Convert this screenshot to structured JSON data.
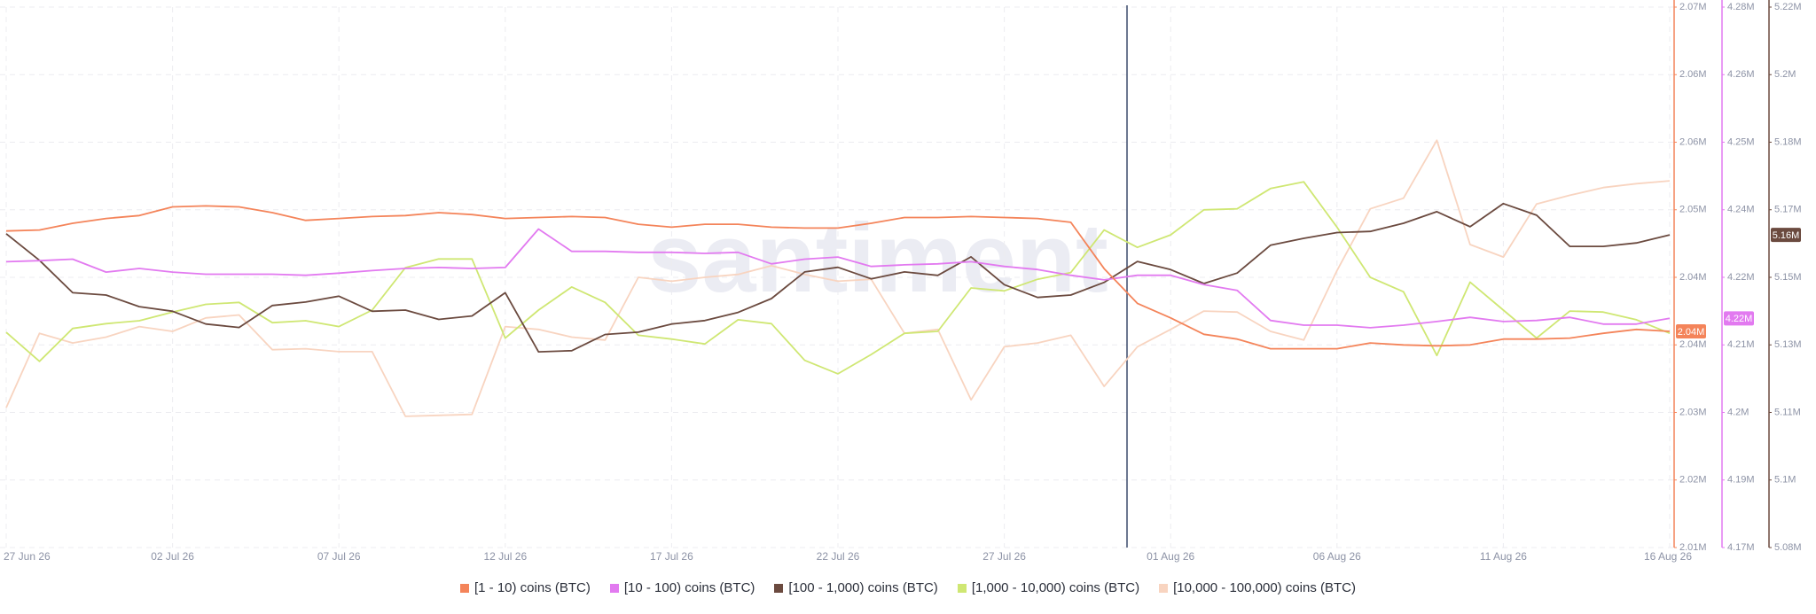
{
  "chart_data": {
    "type": "line",
    "watermark": "santiment",
    "grid": true,
    "categories": [
      "27 Jun 26",
      null,
      null,
      null,
      null,
      "02 Jul 26",
      null,
      null,
      null,
      null,
      "07 Jul 26",
      null,
      null,
      null,
      null,
      "12 Jul 26",
      null,
      null,
      null,
      null,
      "17 Jul 26",
      null,
      null,
      null,
      null,
      "22 Jul 26",
      null,
      null,
      null,
      null,
      "27 Jul 26",
      null,
      null,
      null,
      null,
      "01 Aug 26",
      null,
      null,
      null,
      null,
      "06 Aug 26",
      null,
      null,
      null,
      null,
      "11 Aug 26",
      null,
      null,
      null,
      null,
      "16 Aug 26"
    ],
    "ylim": [
      2014500,
      2070500
    ],
    "yticks": [
      {
        "value": 2070500,
        "label": "2.07M"
      },
      {
        "value": 2063500,
        "label": "2.06M"
      },
      {
        "value": 2056500,
        "label": "2.06M"
      },
      {
        "value": 2049500,
        "label": "2.05M"
      },
      {
        "value": 2042500,
        "label": "2.04M"
      },
      {
        "value": 2035500,
        "label": "2.04M"
      },
      {
        "value": 2028500,
        "label": "2.03M"
      },
      {
        "value": 2021500,
        "label": "2.02M"
      },
      {
        "value": 2014500,
        "label": "2.01M"
      }
    ],
    "y2lim": [
      4172500,
      4276500
    ],
    "y2ticks": [
      {
        "value": 4276500,
        "label": "4.28M"
      },
      {
        "value": 4263500,
        "label": "4.26M"
      },
      {
        "value": 4250500,
        "label": "4.25M"
      },
      {
        "value": 4237500,
        "label": "4.24M"
      },
      {
        "value": 4224500,
        "label": "4.22M"
      },
      {
        "value": 4211500,
        "label": "4.21M"
      },
      {
        "value": 4198500,
        "label": "4.2M"
      },
      {
        "value": 4185500,
        "label": "4.19M"
      },
      {
        "value": 4172500,
        "label": "4.17M"
      }
    ],
    "y3lim": [
      5078500,
      5218500
    ],
    "y3ticks": [
      {
        "value": 5218500,
        "label": "5.22M"
      },
      {
        "value": 5201000,
        "label": "5.2M"
      },
      {
        "value": 5183500,
        "label": "5.18M"
      },
      {
        "value": 5166000,
        "label": "5.17M"
      },
      {
        "value": 5148500,
        "label": "5.15M"
      },
      {
        "value": 5131000,
        "label": "5.13M"
      },
      {
        "value": 5113500,
        "label": "5.11M"
      },
      {
        "value": 5096000,
        "label": "5.1M"
      },
      {
        "value": 5078500,
        "label": "5.08M"
      }
    ],
    "series": [
      {
        "name": "[1 - 10) coins (BTC)",
        "color": "#f4845a",
        "axis": "y",
        "end_label": "2.04M",
        "values": [
          2047300,
          2047400,
          2048100,
          2048600,
          2048900,
          2049800,
          2049900,
          2049800,
          2049200,
          2048400,
          2048600,
          2048800,
          2048900,
          2049200,
          2049000,
          2048600,
          2048700,
          2048800,
          2048700,
          2048000,
          2047700,
          2048000,
          2048000,
          2047700,
          2047600,
          2047600,
          2048100,
          2048700,
          2048700,
          2048800,
          2048700,
          2048600,
          2048200,
          2043400,
          2039800,
          2038300,
          2036600,
          2036100,
          2035100,
          2035100,
          2035100,
          2035700,
          2035500,
          2035400,
          2035500,
          2036100,
          2036100,
          2036200,
          2036700,
          2037100,
          2036900
        ]
      },
      {
        "name": "[10 - 100) coins (BTC)",
        "color": "#e27af0",
        "axis": "y2",
        "end_label": "4.22M",
        "values": [
          4227500,
          4227700,
          4228000,
          4225500,
          4226200,
          4225500,
          4225100,
          4225100,
          4225100,
          4224900,
          4225300,
          4225800,
          4226200,
          4226400,
          4226200,
          4226400,
          4233800,
          4229500,
          4229500,
          4229300,
          4229300,
          4229100,
          4229300,
          4227100,
          4228000,
          4228400,
          4226600,
          4226900,
          4227100,
          4227500,
          4226600,
          4226000,
          4224900,
          4224000,
          4224900,
          4224900,
          4223100,
          4222000,
          4216200,
          4215300,
          4215300,
          4214800,
          4215300,
          4216000,
          4216800,
          4216000,
          4216200,
          4216800,
          4215500,
          4215500,
          4216600
        ]
      },
      {
        "name": "[100 - 1,000) coins (BTC)",
        "color": "#6b4a3f",
        "axis": "y3",
        "end_label": "5.16M",
        "values": [
          5159800,
          5152900,
          5144500,
          5143900,
          5140900,
          5139700,
          5136400,
          5135500,
          5141200,
          5142100,
          5143600,
          5139700,
          5140000,
          5137600,
          5138500,
          5144500,
          5129200,
          5129500,
          5133700,
          5134300,
          5136400,
          5137300,
          5139400,
          5143000,
          5149900,
          5151100,
          5148100,
          5149900,
          5149000,
          5153800,
          5146600,
          5143300,
          5143900,
          5147200,
          5152600,
          5150500,
          5146900,
          5149600,
          5156800,
          5158600,
          5160100,
          5160400,
          5162500,
          5165500,
          5161600,
          5167600,
          5164600,
          5156500,
          5156500,
          5157400,
          5159500
        ]
      },
      {
        "name": "[1,000 - 10,000) coins (BTC)",
        "color": "#cfe773",
        "axis": "y",
        "values": [
          2036800,
          2033800,
          2037200,
          2037700,
          2038000,
          2038900,
          2039700,
          2039900,
          2037800,
          2038000,
          2037400,
          2039100,
          2043500,
          2044400,
          2044400,
          2036200,
          2039100,
          2041500,
          2039900,
          2036500,
          2036100,
          2035600,
          2038100,
          2037700,
          2033900,
          2032500,
          2034500,
          2036700,
          2036900,
          2041400,
          2041100,
          2042300,
          2043000,
          2047400,
          2045600,
          2046900,
          2049500,
          2049600,
          2051700,
          2052400,
          2047700,
          2042500,
          2041000,
          2034400,
          2042000,
          2039100,
          2036200,
          2039000,
          2038900,
          2038100,
          2036700
        ]
      },
      {
        "name": "[10,000 - 100,000) coins (BTC)",
        "color": "#f8d4c0",
        "axis": "y",
        "values": [
          2029000,
          2036700,
          2035700,
          2036300,
          2037400,
          2036900,
          2038300,
          2038600,
          2035000,
          2035100,
          2034800,
          2034800,
          2028100,
          2028200,
          2028300,
          2037400,
          2037100,
          2036300,
          2036000,
          2042500,
          2042100,
          2042500,
          2042800,
          2043700,
          2042800,
          2042100,
          2042300,
          2036700,
          2037100,
          2029800,
          2035300,
          2035700,
          2036500,
          2031200,
          2035300,
          2037100,
          2039000,
          2038900,
          2036900,
          2036000,
          2043200,
          2049600,
          2050700,
          2056700,
          2045900,
          2044600,
          2050100,
          2051000,
          2051800,
          2052200,
          2052500
        ]
      }
    ]
  }
}
